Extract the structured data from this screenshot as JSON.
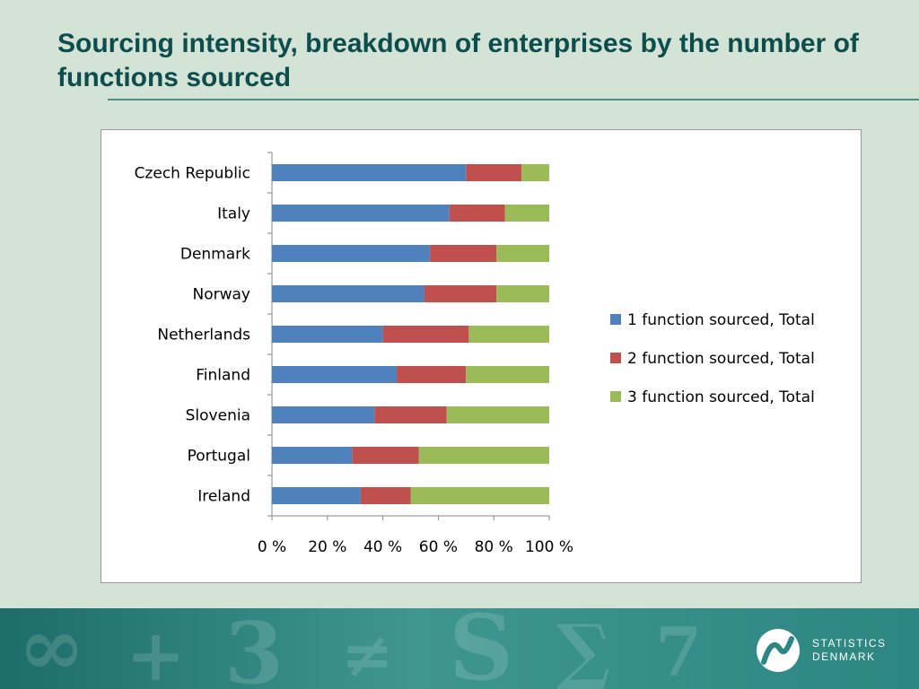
{
  "slide": {
    "title": "Sourcing intensity, breakdown of enterprises by the number of functions sourced"
  },
  "chart_data": {
    "type": "bar",
    "orientation": "horizontal",
    "stacked": "percent",
    "categories": [
      "Czech Republic",
      "Italy",
      "Denmark",
      "Norway",
      "Netherlands",
      "Finland",
      "Slovenia",
      "Portugal",
      "Ireland"
    ],
    "series": [
      {
        "name": "1 function sourced, Total",
        "color": "#4f81bd",
        "values": [
          70,
          64,
          57,
          55,
          40,
          45,
          37,
          29,
          32
        ]
      },
      {
        "name": "2 function sourced, Total",
        "color": "#c0504d",
        "values": [
          20,
          20,
          24,
          26,
          31,
          25,
          26,
          24,
          18
        ]
      },
      {
        "name": "3 function sourced, Total",
        "color": "#9bbb59",
        "values": [
          10,
          16,
          19,
          19,
          29,
          30,
          37,
          47,
          50
        ]
      }
    ],
    "x_ticks": [
      "0 %",
      "20 %",
      "40 %",
      "60 %",
      "80 %",
      "100 %"
    ],
    "xlim": [
      0,
      100
    ],
    "grid": false,
    "legend_position": "right",
    "title": "",
    "xlabel": "",
    "ylabel": ""
  },
  "footer": {
    "logo_line1": "STATISTICS",
    "logo_line2": "DENMARK",
    "accent_color": "#2c8681"
  }
}
